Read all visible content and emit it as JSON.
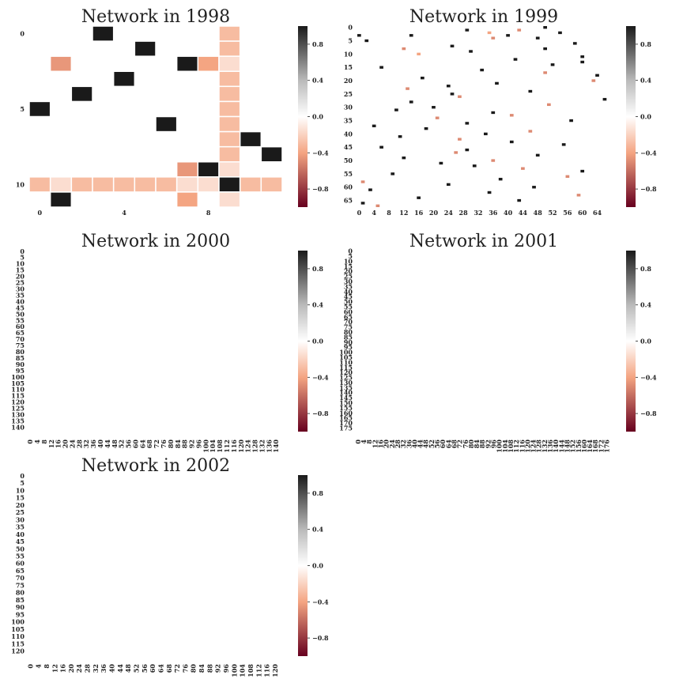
{
  "chart_data": [
    {
      "type": "heatmap",
      "title": "Network in 1998",
      "n": 12,
      "tick_step": 5,
      "x_tick_step": 4,
      "cells": [
        [
          0,
          3,
          1.0
        ],
        [
          0,
          9,
          -0.3
        ],
        [
          1,
          5,
          1.0
        ],
        [
          1,
          9,
          -0.3
        ],
        [
          2,
          1,
          -0.45
        ],
        [
          2,
          7,
          1.0
        ],
        [
          2,
          8,
          -0.4
        ],
        [
          2,
          9,
          -0.15
        ],
        [
          3,
          4,
          1.0
        ],
        [
          3,
          9,
          -0.3
        ],
        [
          4,
          2,
          1.0
        ],
        [
          4,
          9,
          -0.3
        ],
        [
          5,
          0,
          1.0
        ],
        [
          5,
          9,
          -0.3
        ],
        [
          6,
          6,
          1.0
        ],
        [
          6,
          9,
          -0.3
        ],
        [
          7,
          9,
          -0.3
        ],
        [
          7,
          10,
          1.0
        ],
        [
          8,
          9,
          -0.3
        ],
        [
          8,
          11,
          1.0
        ],
        [
          9,
          7,
          -0.45
        ],
        [
          9,
          8,
          1.0
        ],
        [
          9,
          9,
          -0.15
        ],
        [
          10,
          0,
          -0.3
        ],
        [
          10,
          1,
          -0.15
        ],
        [
          10,
          2,
          -0.3
        ],
        [
          10,
          3,
          -0.3
        ],
        [
          10,
          4,
          -0.3
        ],
        [
          10,
          5,
          -0.3
        ],
        [
          10,
          6,
          -0.3
        ],
        [
          10,
          7,
          -0.15
        ],
        [
          10,
          8,
          -0.15
        ],
        [
          10,
          9,
          1.0
        ],
        [
          10,
          10,
          -0.3
        ],
        [
          10,
          11,
          -0.3
        ],
        [
          11,
          1,
          1.0
        ],
        [
          11,
          7,
          -0.4
        ],
        [
          11,
          9,
          -0.15
        ]
      ],
      "color_range": [
        -1,
        1
      ],
      "colorbar_ticks": [
        "0.8",
        "0.4",
        "0.0",
        "−0.4",
        "−0.8"
      ]
    },
    {
      "type": "heatmap",
      "title": "Network in 1999",
      "n": 68,
      "tick_step": 5,
      "x_tick_step": 4,
      "cells": [
        [
          0,
          50,
          1.0
        ],
        [
          1,
          43,
          -0.5
        ],
        [
          1,
          29,
          1.0
        ],
        [
          2,
          54,
          1.0
        ],
        [
          2,
          35,
          -0.4
        ],
        [
          3,
          0,
          1.0
        ],
        [
          3,
          14,
          1.0
        ],
        [
          3,
          40,
          1.0
        ],
        [
          4,
          36,
          -0.5
        ],
        [
          4,
          48,
          1.0
        ],
        [
          5,
          2,
          1.0
        ],
        [
          6,
          58,
          1.0
        ],
        [
          7,
          25,
          1.0
        ],
        [
          8,
          12,
          -0.5
        ],
        [
          8,
          50,
          1.0
        ],
        [
          9,
          30,
          1.0
        ],
        [
          10,
          16,
          -0.4
        ],
        [
          11,
          60,
          1.0
        ],
        [
          12,
          42,
          1.0
        ],
        [
          13,
          60,
          1.0
        ],
        [
          14,
          52,
          1.0
        ],
        [
          15,
          6,
          1.0
        ],
        [
          16,
          33,
          1.0
        ],
        [
          17,
          50,
          -0.5
        ],
        [
          18,
          64,
          1.0
        ],
        [
          19,
          17,
          1.0
        ],
        [
          20,
          63,
          -0.5
        ],
        [
          21,
          37,
          1.0
        ],
        [
          22,
          24,
          1.0
        ],
        [
          23,
          13,
          -0.5
        ],
        [
          24,
          46,
          1.0
        ],
        [
          25,
          25,
          1.0
        ],
        [
          26,
          27,
          -0.5
        ],
        [
          27,
          66,
          1.0
        ],
        [
          28,
          14,
          1.0
        ],
        [
          29,
          51,
          -0.5
        ],
        [
          30,
          20,
          1.0
        ],
        [
          31,
          10,
          1.0
        ],
        [
          32,
          36,
          1.0
        ],
        [
          33,
          41,
          -0.5
        ],
        [
          34,
          21,
          -0.5
        ],
        [
          35,
          57,
          1.0
        ],
        [
          36,
          29,
          1.0
        ],
        [
          37,
          4,
          1.0
        ],
        [
          38,
          18,
          1.0
        ],
        [
          39,
          46,
          -0.5
        ],
        [
          40,
          34,
          1.0
        ],
        [
          41,
          11,
          1.0
        ],
        [
          42,
          27,
          -0.5
        ],
        [
          43,
          41,
          1.0
        ],
        [
          44,
          55,
          1.0
        ],
        [
          45,
          6,
          1.0
        ],
        [
          46,
          29,
          1.0
        ],
        [
          47,
          26,
          -0.5
        ],
        [
          48,
          48,
          1.0
        ],
        [
          49,
          12,
          1.0
        ],
        [
          50,
          36,
          -0.5
        ],
        [
          51,
          22,
          1.0
        ],
        [
          52,
          31,
          1.0
        ],
        [
          53,
          44,
          -0.5
        ],
        [
          54,
          60,
          1.0
        ],
        [
          55,
          9,
          1.0
        ],
        [
          56,
          56,
          -0.5
        ],
        [
          57,
          38,
          1.0
        ],
        [
          58,
          1,
          -0.5
        ],
        [
          59,
          24,
          1.0
        ],
        [
          60,
          47,
          1.0
        ],
        [
          61,
          3,
          1.0
        ],
        [
          62,
          35,
          1.0
        ],
        [
          63,
          59,
          -0.5
        ],
        [
          64,
          16,
          1.0
        ],
        [
          65,
          43,
          1.0
        ],
        [
          66,
          1,
          1.0
        ],
        [
          67,
          5,
          -0.5
        ]
      ],
      "color_range": [
        -1,
        1
      ],
      "colorbar_ticks": [
        "0.8",
        "0.4",
        "0.0",
        "−0.4",
        "−0.8"
      ]
    },
    {
      "type": "heatmap",
      "title": "Network in 2000",
      "n": 144,
      "tick_step": 5,
      "x_tick_step": 4,
      "cells": [],
      "color_range": [
        -1,
        1
      ],
      "colorbar_ticks": [
        "0.8",
        "0.4",
        "0.0",
        "−0.4",
        "−0.8"
      ]
    },
    {
      "type": "heatmap",
      "title": "Network in 2001",
      "n": 179,
      "tick_step": 5,
      "x_tick_step": 4,
      "cells": [],
      "color_range": [
        -1,
        1
      ],
      "colorbar_ticks": [
        "0.8",
        "0.4",
        "0.0",
        "−0.4",
        "−0.8"
      ]
    },
    {
      "type": "heatmap",
      "title": "Network in 2002",
      "n": 124,
      "tick_step": 5,
      "x_tick_step": 4,
      "cells": [],
      "color_range": [
        -1,
        1
      ],
      "colorbar_ticks": [
        "0.8",
        "0.4",
        "0.0",
        "−0.4",
        "−0.8"
      ]
    }
  ],
  "colors": {
    "cmap_low": "#67001f",
    "cmap_mid_low": "#f4a582",
    "cmap_mid": "#ffffff",
    "cmap_mid_high": "#bababa",
    "cmap_high": "#1a1a1a"
  }
}
